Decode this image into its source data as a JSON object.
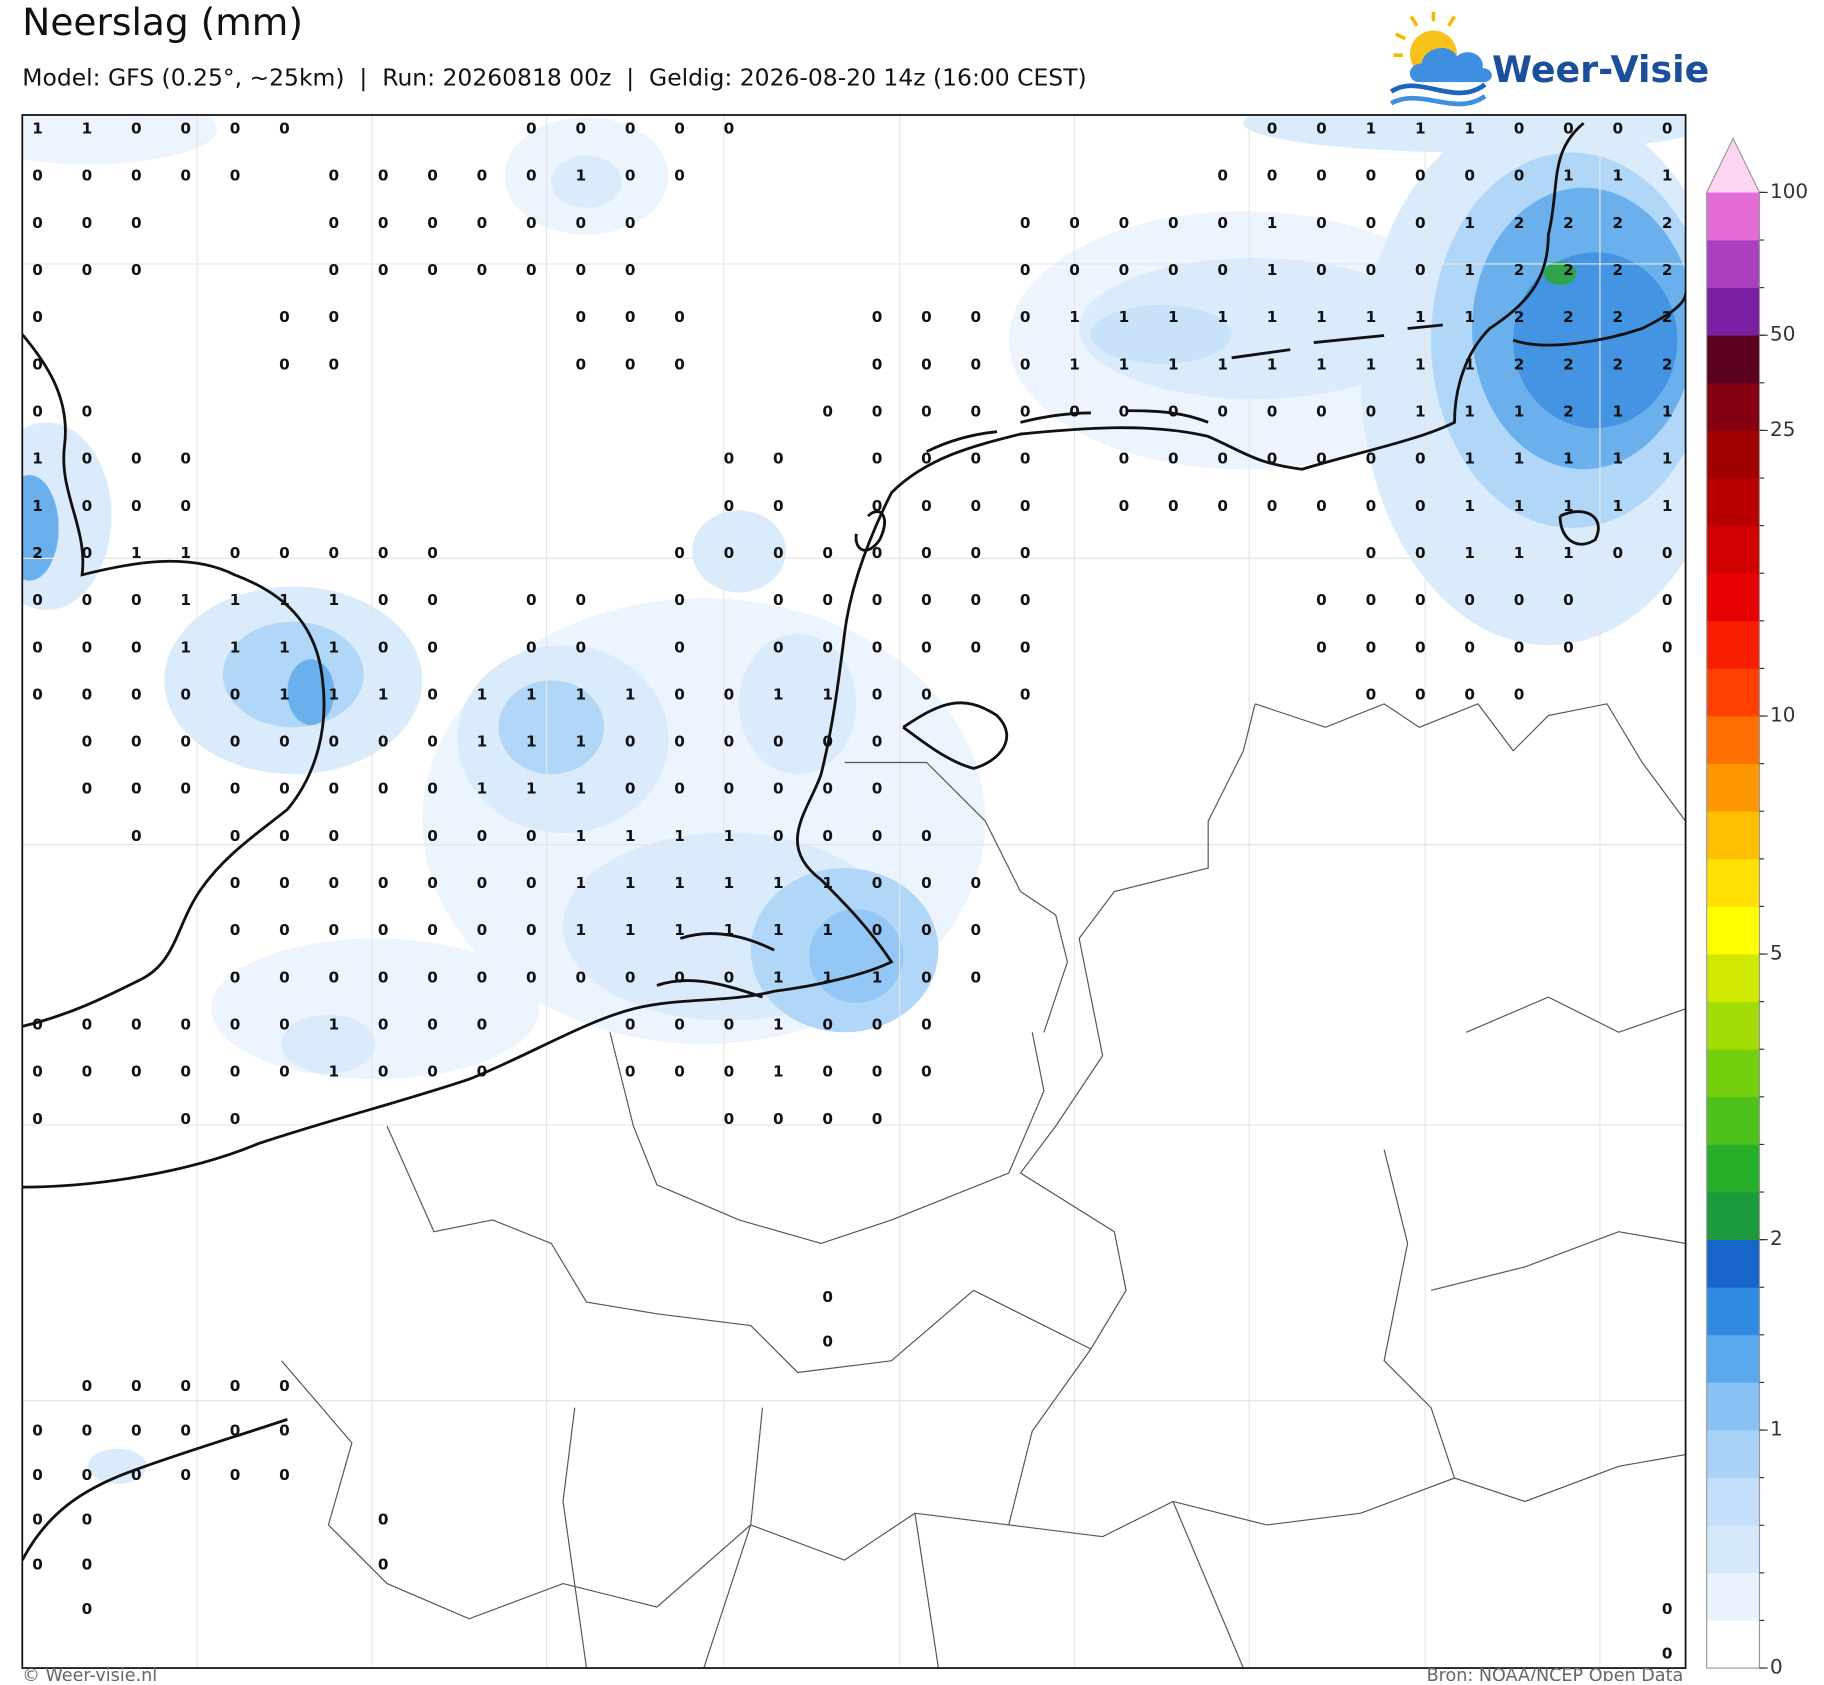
{
  "header": {
    "title": "Neerslag (mm)",
    "subtitle": "Model: GFS (0.25°, ~25km)  |  Run: 20260818 00z  |  Geldig: 2026-08-20 14z (16:00 CEST)",
    "logo": "Weer-Visie"
  },
  "footer": {
    "left": "© Weer-visie.nl",
    "right": "Bron: NOAA/NCEP Open Data"
  },
  "colorbar": {
    "colors": [
      "#ffffff",
      "#eaf3fd",
      "#d6e9fb",
      "#c3dffa",
      "#a8d2f8",
      "#88c2f4",
      "#5aa8ec",
      "#2f8ae2",
      "#1566c8",
      "#1a9a3a",
      "#27b02a",
      "#4cc21a",
      "#74d00c",
      "#a3dc05",
      "#cfea00",
      "#ffff00",
      "#ffe000",
      "#ffbf00",
      "#ff9800",
      "#ff7000",
      "#ff4000",
      "#f82000",
      "#e60000",
      "#d00000",
      "#b80000",
      "#a00000",
      "#840010",
      "#5a0020",
      "#7a1fa2",
      "#a840c0",
      "#e56cd8"
    ],
    "extend_color": "#fcd6f0",
    "ticks": [
      0,
      1,
      2,
      5,
      10,
      25,
      50,
      100
    ]
  },
  "grid": {
    "rows": [
      [
        1,
        1,
        0,
        0,
        0,
        0,
        null,
        null,
        null,
        null,
        0,
        0,
        0,
        0,
        0,
        null,
        null,
        null,
        null,
        null,
        null,
        null,
        null,
        null,
        null,
        0,
        0,
        1,
        1,
        1,
        0,
        0,
        0,
        0
      ],
      [
        0,
        0,
        0,
        0,
        0,
        null,
        0,
        0,
        0,
        0,
        0,
        1,
        0,
        0,
        null,
        null,
        null,
        null,
        null,
        null,
        null,
        null,
        null,
        null,
        0,
        0,
        0,
        0,
        0,
        0,
        0,
        1,
        1,
        1
      ],
      [
        0,
        0,
        0,
        null,
        null,
        null,
        0,
        0,
        0,
        0,
        0,
        0,
        0,
        null,
        null,
        null,
        null,
        null,
        null,
        null,
        0,
        0,
        0,
        0,
        0,
        1,
        0,
        0,
        0,
        1,
        2,
        2,
        2,
        2
      ],
      [
        0,
        0,
        0,
        null,
        null,
        null,
        0,
        0,
        0,
        0,
        0,
        0,
        0,
        null,
        null,
        null,
        null,
        null,
        null,
        null,
        0,
        0,
        0,
        0,
        0,
        1,
        0,
        0,
        0,
        1,
        2,
        2,
        2,
        2
      ],
      [
        0,
        null,
        null,
        null,
        null,
        0,
        0,
        null,
        null,
        null,
        null,
        0,
        0,
        0,
        null,
        null,
        null,
        0,
        0,
        0,
        0,
        1,
        1,
        1,
        1,
        1,
        1,
        1,
        1,
        1,
        2,
        2,
        2,
        2
      ],
      [
        0,
        null,
        null,
        null,
        null,
        0,
        0,
        null,
        null,
        null,
        null,
        0,
        0,
        0,
        null,
        null,
        null,
        0,
        0,
        0,
        0,
        1,
        1,
        1,
        1,
        1,
        1,
        1,
        1,
        1,
        2,
        2,
        2,
        2
      ],
      [
        0,
        0,
        null,
        null,
        null,
        null,
        null,
        null,
        null,
        null,
        null,
        null,
        null,
        null,
        null,
        null,
        0,
        0,
        0,
        0,
        0,
        0,
        0,
        0,
        0,
        0,
        0,
        0,
        1,
        1,
        1,
        2,
        1,
        1
      ],
      [
        1,
        0,
        0,
        0,
        null,
        null,
        null,
        null,
        null,
        null,
        null,
        null,
        null,
        null,
        0,
        0,
        null,
        0,
        0,
        0,
        0,
        null,
        0,
        0,
        0,
        0,
        0,
        0,
        0,
        1,
        1,
        1,
        1,
        1
      ],
      [
        1,
        0,
        0,
        0,
        null,
        null,
        null,
        null,
        null,
        null,
        null,
        null,
        null,
        null,
        0,
        0,
        null,
        0,
        0,
        0,
        0,
        null,
        0,
        0,
        0,
        0,
        0,
        0,
        0,
        1,
        1,
        1,
        1,
        1
      ],
      [
        2,
        0,
        1,
        1,
        0,
        0,
        0,
        0,
        0,
        null,
        null,
        null,
        null,
        0,
        0,
        0,
        0,
        0,
        0,
        0,
        0,
        null,
        null,
        null,
        null,
        null,
        null,
        0,
        0,
        1,
        1,
        1,
        0,
        0
      ],
      [
        0,
        0,
        0,
        1,
        1,
        1,
        1,
        0,
        0,
        null,
        0,
        0,
        null,
        0,
        null,
        0,
        0,
        0,
        0,
        0,
        0,
        null,
        null,
        null,
        null,
        null,
        0,
        0,
        0,
        0,
        0,
        0,
        null,
        0
      ],
      [
        0,
        0,
        0,
        1,
        1,
        1,
        1,
        0,
        0,
        null,
        0,
        0,
        null,
        0,
        null,
        0,
        0,
        0,
        0,
        0,
        0,
        null,
        null,
        null,
        null,
        null,
        0,
        0,
        0,
        0,
        0,
        0,
        null,
        0
      ],
      [
        0,
        0,
        0,
        0,
        0,
        1,
        1,
        1,
        0,
        1,
        1,
        1,
        1,
        0,
        0,
        1,
        1,
        0,
        0,
        null,
        0,
        null,
        null,
        null,
        null,
        null,
        null,
        0,
        0,
        0,
        0,
        null,
        null,
        null
      ],
      [
        null,
        0,
        0,
        0,
        0,
        0,
        0,
        0,
        0,
        1,
        1,
        1,
        0,
        0,
        0,
        0,
        0,
        0,
        null,
        null,
        null,
        null,
        null,
        null,
        null,
        null,
        null,
        null,
        null,
        null,
        null,
        null,
        null,
        null
      ],
      [
        null,
        0,
        0,
        0,
        0,
        0,
        0,
        0,
        0,
        1,
        1,
        1,
        0,
        0,
        0,
        0,
        0,
        0,
        null,
        null,
        null,
        null,
        null,
        null,
        null,
        null,
        null,
        null,
        null,
        null,
        null,
        null,
        null,
        null
      ],
      [
        null,
        null,
        0,
        null,
        0,
        0,
        0,
        null,
        0,
        0,
        0,
        1,
        1,
        1,
        1,
        0,
        0,
        0,
        0,
        null,
        null,
        null,
        null,
        null,
        null,
        null,
        null,
        null,
        null,
        null,
        null,
        null,
        null,
        null
      ],
      [
        null,
        null,
        null,
        null,
        0,
        0,
        0,
        0,
        0,
        0,
        0,
        1,
        1,
        1,
        1,
        1,
        1,
        0,
        0,
        0,
        null,
        null,
        null,
        null,
        null,
        null,
        null,
        null,
        null,
        null,
        null,
        null,
        null,
        null
      ],
      [
        null,
        null,
        null,
        null,
        0,
        0,
        0,
        0,
        0,
        0,
        0,
        1,
        1,
        1,
        1,
        1,
        1,
        0,
        0,
        0,
        null,
        null,
        null,
        null,
        null,
        null,
        null,
        null,
        null,
        null,
        null,
        null,
        null,
        null
      ],
      [
        null,
        null,
        null,
        null,
        0,
        0,
        0,
        0,
        0,
        0,
        0,
        0,
        0,
        0,
        0,
        1,
        1,
        1,
        0,
        0,
        null,
        null,
        null,
        null,
        null,
        null,
        null,
        null,
        null,
        null,
        null,
        null,
        null,
        null
      ],
      [
        0,
        0,
        0,
        0,
        0,
        0,
        1,
        0,
        0,
        0,
        null,
        null,
        0,
        0,
        0,
        1,
        0,
        0,
        0,
        null,
        null,
        null,
        null,
        null,
        null,
        null,
        null,
        null,
        null,
        null,
        null,
        null,
        null,
        null
      ],
      [
        0,
        0,
        0,
        0,
        0,
        0,
        1,
        0,
        0,
        0,
        null,
        null,
        0,
        0,
        0,
        1,
        0,
        0,
        0,
        null,
        null,
        null,
        null,
        null,
        null,
        null,
        null,
        null,
        null,
        null,
        null,
        null,
        null,
        null
      ],
      [
        0,
        null,
        null,
        0,
        0,
        null,
        null,
        null,
        null,
        null,
        null,
        null,
        null,
        null,
        0,
        0,
        0,
        0,
        null,
        null,
        null,
        null,
        null,
        null,
        null,
        null,
        null,
        null,
        null,
        null,
        null,
        null,
        null,
        null
      ],
      [
        null,
        null,
        null,
        null,
        null,
        null,
        null,
        null,
        null,
        null,
        null,
        null,
        null,
        null,
        null,
        null,
        null,
        null,
        null,
        null,
        null,
        null,
        null,
        null,
        null,
        null,
        null,
        null,
        null,
        null,
        null,
        null,
        null,
        null
      ],
      [
        null,
        null,
        null,
        null,
        null,
        null,
        null,
        null,
        null,
        null,
        null,
        null,
        null,
        null,
        null,
        null,
        null,
        null,
        null,
        null,
        null,
        null,
        null,
        null,
        null,
        null,
        null,
        null,
        null,
        null,
        null,
        null,
        null,
        null
      ],
      [
        null,
        null,
        null,
        null,
        null,
        null,
        null,
        null,
        null,
        null,
        null,
        null,
        null,
        null,
        null,
        null,
        null,
        null,
        null,
        null,
        null,
        null,
        null,
        null,
        null,
        null,
        null,
        null,
        null,
        null,
        null,
        null,
        null,
        null
      ],
      [
        null,
        null,
        null,
        null,
        null,
        null,
        null,
        null,
        null,
        null,
        null,
        null,
        null,
        null,
        null,
        null,
        0,
        null,
        null,
        null,
        null,
        null,
        null,
        null,
        null,
        null,
        null,
        null,
        null,
        null,
        null,
        null,
        null,
        null
      ],
      [
        null,
        null,
        null,
        null,
        null,
        null,
        null,
        null,
        null,
        null,
        null,
        null,
        null,
        null,
        null,
        null,
        0,
        null,
        null,
        null,
        null,
        null,
        null,
        null,
        null,
        null,
        null,
        null,
        null,
        null,
        null,
        null,
        null,
        null
      ],
      [
        null,
        0,
        0,
        0,
        0,
        0,
        null,
        null,
        null,
        null,
        null,
        null,
        null,
        null,
        null,
        null,
        null,
        null,
        null,
        null,
        null,
        null,
        null,
        null,
        null,
        null,
        null,
        null,
        null,
        null,
        null,
        null,
        null,
        null
      ],
      [
        0,
        0,
        0,
        0,
        0,
        0,
        null,
        null,
        null,
        null,
        null,
        null,
        null,
        null,
        null,
        null,
        null,
        null,
        null,
        null,
        null,
        null,
        null,
        null,
        null,
        null,
        null,
        null,
        null,
        null,
        null,
        null,
        null,
        null
      ],
      [
        0,
        0,
        0,
        0,
        0,
        0,
        null,
        null,
        null,
        null,
        null,
        null,
        null,
        null,
        null,
        null,
        null,
        null,
        null,
        null,
        null,
        null,
        null,
        null,
        null,
        null,
        null,
        null,
        null,
        null,
        null,
        null,
        null,
        null
      ],
      [
        0,
        0,
        null,
        null,
        null,
        null,
        null,
        0,
        null,
        null,
        null,
        null,
        null,
        null,
        null,
        null,
        null,
        null,
        null,
        null,
        null,
        null,
        null,
        null,
        null,
        null,
        null,
        null,
        null,
        null,
        null,
        null,
        null,
        null
      ],
      [
        0,
        0,
        null,
        null,
        null,
        null,
        null,
        0,
        null,
        null,
        null,
        null,
        null,
        null,
        null,
        null,
        null,
        null,
        null,
        null,
        null,
        null,
        null,
        null,
        null,
        null,
        null,
        null,
        null,
        null,
        null,
        null,
        null,
        null
      ],
      [
        null,
        0,
        null,
        null,
        null,
        null,
        null,
        null,
        null,
        null,
        null,
        null,
        null,
        null,
        null,
        null,
        null,
        null,
        null,
        null,
        null,
        null,
        null,
        null,
        null,
        null,
        null,
        null,
        null,
        null,
        null,
        null,
        null,
        0
      ],
      [
        null,
        null,
        null,
        null,
        null,
        null,
        null,
        null,
        null,
        null,
        null,
        null,
        null,
        null,
        null,
        null,
        null,
        null,
        null,
        null,
        null,
        null,
        null,
        null,
        null,
        null,
        null,
        null,
        null,
        null,
        null,
        null,
        null,
        0
      ]
    ]
  }
}
